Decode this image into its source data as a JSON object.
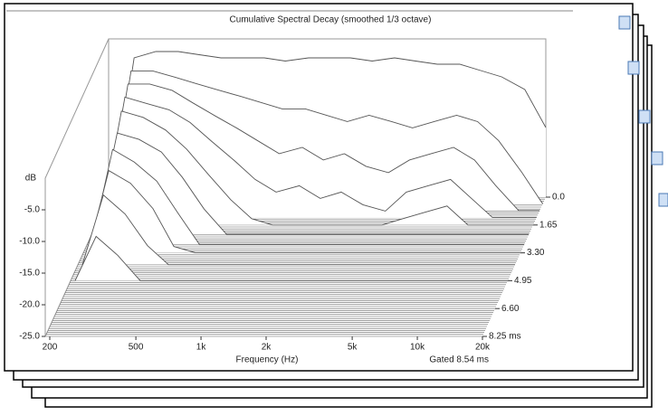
{
  "chart_data": {
    "type": "waterfall",
    "title": "Cumulative Spectral Decay (smoothed 1/3 octave)",
    "xlabel": "Frequency (Hz)",
    "ylabel": "dB",
    "note": "Gated 8.54 ms",
    "xscale": "log",
    "xlim": [
      200,
      20000
    ],
    "xticks": [
      200,
      500,
      {
        "value": 1000,
        "label": "1k"
      },
      {
        "value": 2000,
        "label": "2k"
      },
      {
        "value": 5000,
        "label": "5k"
      },
      {
        "value": 10000,
        "label": "10k"
      },
      {
        "value": 20000,
        "label": "20k"
      }
    ],
    "ylim": [
      -25,
      0
    ],
    "yticks": [
      {
        "value": -5,
        "label": "-5.0"
      },
      {
        "value": -10,
        "label": "-10.0"
      },
      {
        "value": -15,
        "label": "-15.0"
      },
      {
        "value": -20,
        "label": "-20.0"
      },
      {
        "value": -25,
        "label": "-25.0"
      }
    ],
    "zlim": [
      0,
      8.25
    ],
    "zticks": [
      {
        "value": 0,
        "label": "0.0"
      },
      1.65,
      {
        "value": 3.3,
        "label": "3.30"
      },
      4.95,
      {
        "value": 6.6,
        "label": "6.60"
      },
      {
        "value": 8.25,
        "label": "8.25 ms"
      }
    ],
    "color": "#555555",
    "x": [
      200,
      250,
      315,
      400,
      500,
      630,
      800,
      1000,
      1250,
      1600,
      2000,
      2500,
      3150,
      4000,
      5000,
      6300,
      8000,
      10000,
      12500,
      16000,
      20000
    ],
    "series": [
      {
        "t": 0,
        "values": [
          -25,
          -3,
          -2,
          -2,
          -2.5,
          -3,
          -3,
          -3,
          -3.5,
          -3,
          -3,
          -3,
          -3.5,
          -3,
          -3.5,
          -4,
          -4,
          -5,
          -6,
          -8,
          -14
        ]
      },
      {
        "t": 0.4,
        "values": [
          -25,
          -4,
          -4,
          -5,
          -6,
          -7,
          -8,
          -9,
          -10,
          -10,
          -11,
          -12,
          -11,
          -12,
          -13,
          -12,
          -11,
          -12,
          -15,
          -20,
          -25
        ]
      },
      {
        "t": 0.8,
        "values": [
          -25,
          -5,
          -5,
          -6,
          -8,
          -10,
          -12,
          -14,
          -16,
          -15,
          -17,
          -16,
          -18,
          -19,
          -17,
          -16,
          -15,
          -17,
          -21,
          -25,
          -25
        ]
      },
      {
        "t": 1.2,
        "values": [
          -25,
          -6,
          -7,
          -8,
          -10,
          -13,
          -16,
          -19,
          -21,
          -20,
          -22,
          -21,
          -23,
          -24,
          -21,
          -20,
          -19,
          -22,
          -25,
          -25,
          -25
        ]
      },
      {
        "t": 1.65,
        "values": [
          -25,
          -7,
          -8,
          -10,
          -13,
          -17,
          -21,
          -24,
          -25,
          -25,
          -25,
          -25,
          -25,
          -25,
          -24,
          -23,
          -22,
          -25,
          -25,
          -25,
          -25
        ]
      },
      {
        "t": 2.2,
        "values": [
          -25,
          -9,
          -10,
          -12,
          -16,
          -21,
          -25,
          -25,
          -25,
          -25,
          -25,
          -25,
          -25,
          -25,
          -25,
          -25,
          -25,
          -25,
          -25,
          -25,
          -25
        ]
      },
      {
        "t": 2.8,
        "values": [
          -25,
          -10,
          -12,
          -15,
          -20,
          -25,
          -25,
          -25,
          -25,
          -25,
          -25,
          -25,
          -25,
          -25,
          -25,
          -25,
          -25,
          -25,
          -25,
          -25,
          -25
        ]
      },
      {
        "t": 3.3,
        "values": [
          -25,
          -12,
          -14,
          -18,
          -24,
          -25,
          -25,
          -25,
          -25,
          -25,
          -25,
          -25,
          -25,
          -25,
          -25,
          -25,
          -25,
          -25,
          -25,
          -25,
          -25
        ]
      },
      {
        "t": 4.0,
        "values": [
          -25,
          -14,
          -17,
          -22,
          -25,
          -25,
          -25,
          -25,
          -25,
          -25,
          -25,
          -25,
          -25,
          -25,
          -25,
          -25,
          -25,
          -25,
          -25,
          -25,
          -25
        ]
      },
      {
        "t": 4.95,
        "values": [
          -25,
          -18,
          -21,
          -25,
          -25,
          -25,
          -25,
          -25,
          -25,
          -25,
          -25,
          -25,
          -25,
          -25,
          -25,
          -25,
          -25,
          -25,
          -25,
          -25,
          -25
        ]
      }
    ]
  }
}
